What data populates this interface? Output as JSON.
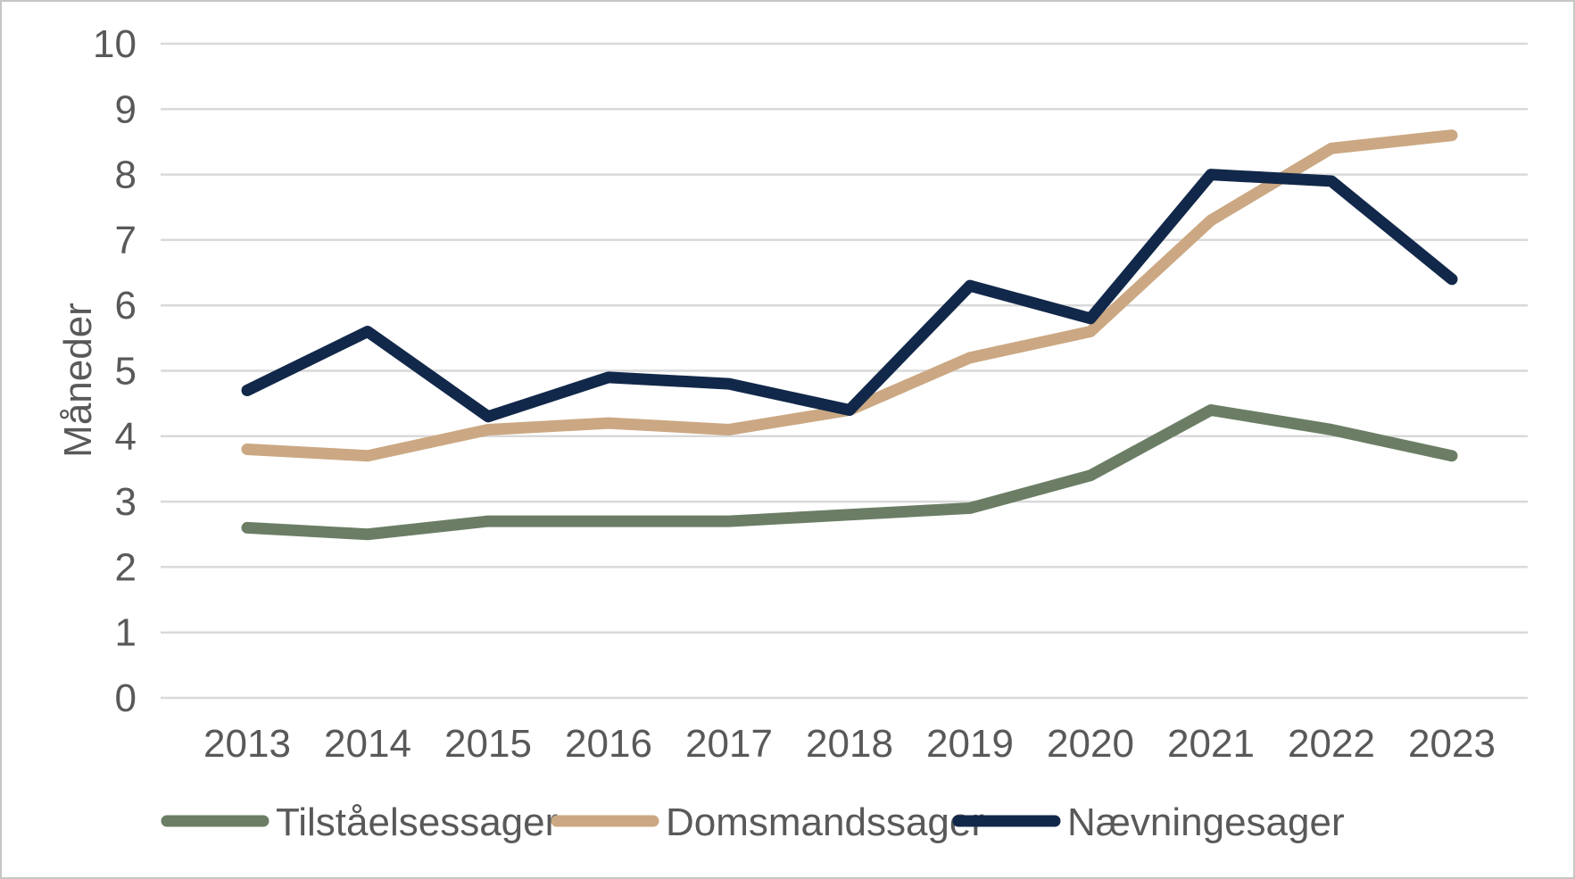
{
  "chart_data": {
    "type": "line",
    "title": "",
    "xlabel": "",
    "ylabel": "Måneder",
    "categories": [
      "2013",
      "2014",
      "2015",
      "2016",
      "2017",
      "2018",
      "2019",
      "2020",
      "2021",
      "2022",
      "2023"
    ],
    "series": [
      {
        "name": "Tilståelsessager",
        "color": "#6b7e65",
        "values": [
          2.6,
          2.5,
          2.7,
          2.7,
          2.7,
          2.8,
          2.9,
          3.4,
          4.4,
          4.1,
          3.7
        ]
      },
      {
        "name": "Domsmandssager",
        "color": "#cba883",
        "values": [
          3.8,
          3.7,
          4.1,
          4.2,
          4.1,
          4.4,
          5.2,
          5.6,
          7.3,
          8.4,
          8.6
        ]
      },
      {
        "name": "Nævningesager",
        "color": "#12284a",
        "values": [
          4.7,
          5.6,
          4.3,
          4.9,
          4.8,
          4.4,
          6.3,
          5.8,
          8.0,
          7.9,
          6.4
        ]
      }
    ],
    "ylim": [
      0,
      10
    ],
    "ytick_step": 1,
    "grid": "horizontal",
    "legend_position": "bottom"
  },
  "style": {
    "grid_color": "#d9d9d9",
    "text_color": "#595959",
    "background": "#ffffff",
    "frame_border_color": "#c6c6c6"
  }
}
